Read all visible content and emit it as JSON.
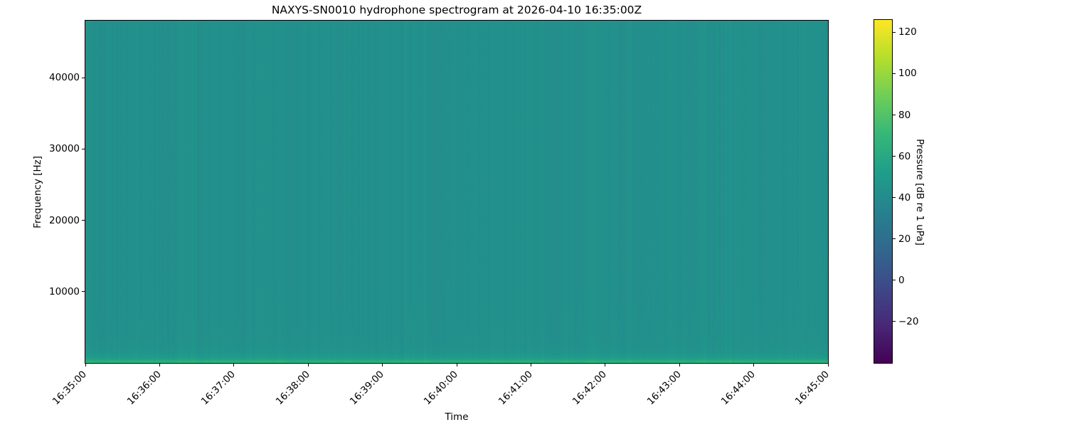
{
  "chart_data": {
    "type": "heatmap",
    "title": "NAXYS-SN0010 hydrophone spectrogram at 2026-04-10 16:35:00Z",
    "xlabel": "Time",
    "ylabel": "Frequency [Hz]",
    "x_tick_labels": [
      "16:35:00",
      "16:36:00",
      "16:37:00",
      "16:38:00",
      "16:39:00",
      "16:40:00",
      "16:41:00",
      "16:42:00",
      "16:43:00",
      "16:44:00",
      "16:45:00"
    ],
    "x_tick_rotation_deg": 45,
    "time_span": {
      "start": "16:35:00",
      "end": "16:45:00",
      "duration_seconds": 600
    },
    "y_ticks_hz": [
      10000,
      20000,
      30000,
      40000
    ],
    "ylim_hz": [
      0,
      48000
    ],
    "grid": false,
    "legend": "none",
    "colorbar": {
      "label": "Pressure [dB re 1 uPa]",
      "ticks_db": [
        120,
        100,
        80,
        60,
        40,
        20,
        0,
        -20
      ],
      "vmin_db": -40,
      "vmax_db": 126,
      "colormap": "viridis",
      "viridis_stops": [
        "#440154",
        "#482878",
        "#3e4989",
        "#31688e",
        "#26828e",
        "#1f9e89",
        "#35b779",
        "#6ece58",
        "#b5de2b",
        "#fde725"
      ],
      "position": "right"
    },
    "field": {
      "description": "Near-uniform broadband background with faint vertical time striations and a brighter low-frequency band hugging the bottom (0 Hz) edge; slightly mottled texture in the lowest few kHz near the start of the record",
      "background_db": 43,
      "background_color": "#21918c",
      "column_striation_db": 1.3,
      "bottom_band_surface_db": 70,
      "bottom_band_color": "#35b779",
      "bottom_band_decay_hz": 520,
      "broad_low_freq_lift_db": 2.5,
      "broad_low_freq_decay_hz": 2600,
      "noise_seed": 11
    }
  }
}
